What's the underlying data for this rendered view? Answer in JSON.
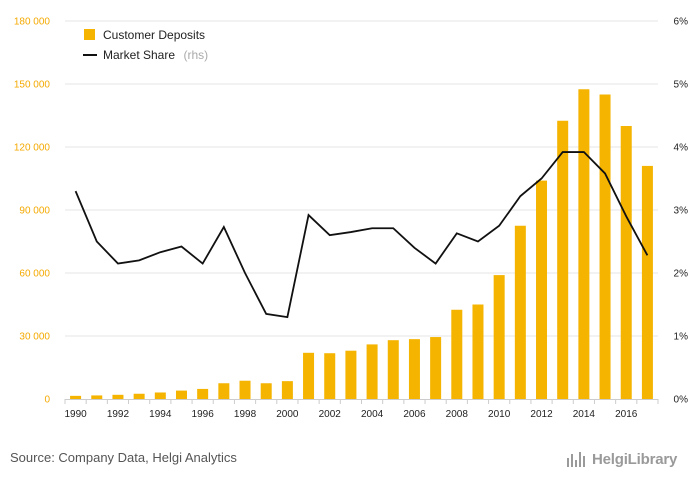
{
  "chart_data": {
    "type": "bar",
    "categories": [
      "1990",
      "1991",
      "1992",
      "1993",
      "1994",
      "1995",
      "1996",
      "1997",
      "1998",
      "1999",
      "2000",
      "2001",
      "2002",
      "2003",
      "2004",
      "2005",
      "2006",
      "2007",
      "2008",
      "2009",
      "2010",
      "2011",
      "2012",
      "2013",
      "2014",
      "2015",
      "2016",
      "2017"
    ],
    "x_tick_labels": [
      "1990",
      "1992",
      "1994",
      "1996",
      "1998",
      "2000",
      "2002",
      "2004",
      "2006",
      "2008",
      "2010",
      "2012",
      "2014",
      "2016"
    ],
    "series": [
      {
        "name": "Customer Deposits",
        "type": "bar",
        "axis": "left",
        "color": "#f4b400",
        "values": [
          1500,
          1700,
          2000,
          2500,
          3100,
          4000,
          4800,
          7500,
          8700,
          7500,
          8500,
          22000,
          21800,
          23000,
          26000,
          28000,
          28500,
          29500,
          42500,
          45000,
          59000,
          82500,
          104000,
          132500,
          147500,
          145000,
          130000,
          111000
        ]
      },
      {
        "name": "Market Share",
        "name_suffix": "(rhs)",
        "type": "line",
        "axis": "right",
        "color": "#111111",
        "values": [
          3.3,
          2.5,
          2.15,
          2.2,
          2.33,
          2.42,
          2.15,
          2.73,
          2.0,
          1.35,
          1.3,
          2.92,
          2.6,
          2.65,
          2.71,
          2.71,
          2.4,
          2.15,
          2.63,
          2.5,
          2.75,
          3.22,
          3.5,
          3.92,
          3.92,
          3.58,
          2.9,
          2.28
        ]
      }
    ],
    "y_left": {
      "ylim": [
        0,
        180000
      ],
      "ticks": [
        "0",
        "30 000",
        "60 000",
        "90 000",
        "120 000",
        "150 000",
        "180 000"
      ]
    },
    "y_right": {
      "ylim": [
        0,
        6
      ],
      "ticks": [
        "0%",
        "1%",
        "2%",
        "3%",
        "4%",
        "5%",
        "6%"
      ]
    },
    "grid": true,
    "legend_position": "top-left"
  },
  "footer": {
    "source": "Source: Company Data, Helgi Analytics",
    "logo_text": "HelgiLibrary"
  }
}
